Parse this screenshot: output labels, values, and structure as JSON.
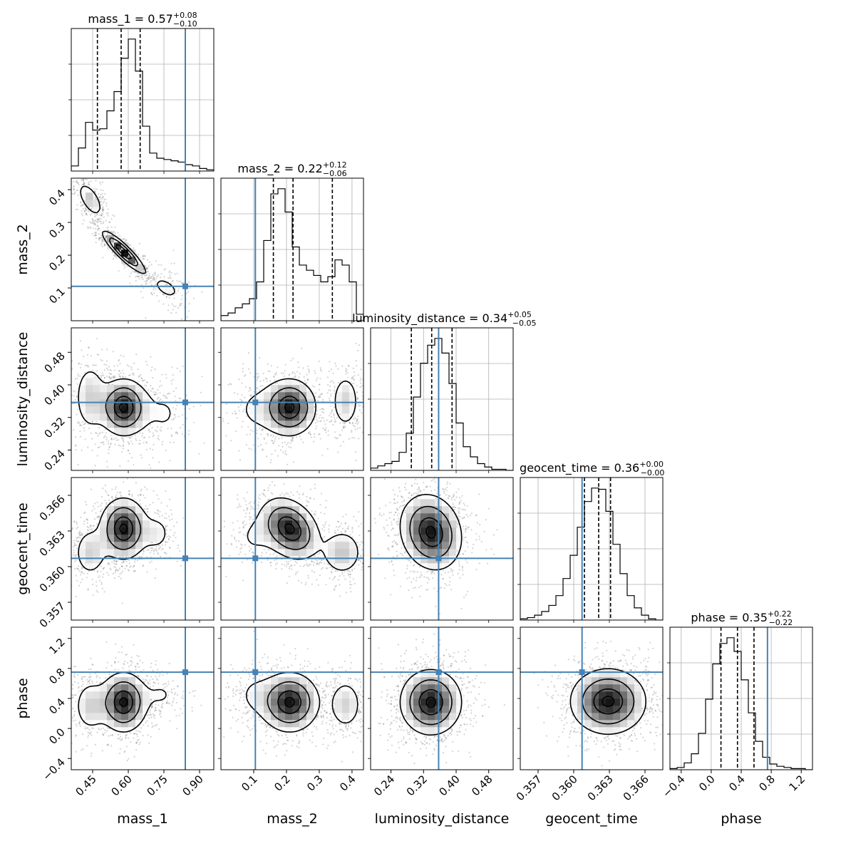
{
  "chart_data": {
    "type": "corner",
    "parameters": [
      "mass_1",
      "mass_2",
      "luminosity_distance",
      "geocent_time",
      "phase"
    ],
    "injection": [
      0.84,
      0.105,
      0.357,
      0.3607,
      0.75
    ],
    "truth_color": "#4682b4",
    "ranges": [
      [
        0.36,
        0.96
      ],
      [
        0.0,
        0.435
      ],
      [
        0.19,
        0.54
      ],
      [
        0.3555,
        0.3675
      ],
      [
        -0.55,
        1.35
      ]
    ],
    "ticks": {
      "mass_1": [
        0.45,
        0.6,
        0.75,
        0.9
      ],
      "mass_2": [
        0.1,
        0.2,
        0.3,
        0.4
      ],
      "luminosity_distance": [
        0.24,
        0.32,
        0.4,
        0.48
      ],
      "geocent_time": [
        0.357,
        0.36,
        0.363,
        0.366
      ],
      "phase": [
        -0.4,
        0.0,
        0.4,
        0.8,
        1.2
      ]
    },
    "tick_labels": {
      "mass_1": [
        "0.45",
        "0.60",
        "0.75",
        "0.90"
      ],
      "mass_2": [
        "0.1",
        "0.2",
        "0.3",
        "0.4"
      ],
      "luminosity_distance": [
        "0.24",
        "0.32",
        "0.40",
        "0.48"
      ],
      "geocent_time": [
        "0.357",
        "0.360",
        "0.363",
        "0.366"
      ],
      "phase": [
        "−0.4",
        "0.0",
        "0.4",
        "0.8",
        "1.2"
      ]
    },
    "titles": [
      {
        "param": "mass_1",
        "text": "mass_1 = 0.57",
        "plus": "+0.08",
        "minus": "−0.10"
      },
      {
        "param": "mass_2",
        "text": "mass_2 = 0.22",
        "plus": "+0.12",
        "minus": "−0.06"
      },
      {
        "param": "luminosity_distance",
        "text": "luminosity_distance = 0.34",
        "plus": "+0.05",
        "minus": "−0.05"
      },
      {
        "param": "geocent_time",
        "text": "geocent_time = 0.36",
        "plus": "+0.00",
        "minus": "−0.00"
      },
      {
        "param": "phase",
        "text": "phase = 0.35",
        "plus": "+0.22",
        "minus": "−0.22"
      }
    ],
    "quantiles": [
      [
        0.47,
        0.57,
        0.65
      ],
      [
        0.16,
        0.22,
        0.34
      ],
      [
        0.29,
        0.34,
        0.39
      ],
      [
        0.3609,
        0.3621,
        0.3631
      ],
      [
        0.13,
        0.35,
        0.57
      ]
    ],
    "histograms": [
      {
        "param": "mass_1",
        "bins": [
          0.36,
          0.96
        ],
        "counts": [
          4,
          18,
          38,
          32,
          33,
          47,
          62,
          88,
          103,
          78,
          35,
          14,
          10,
          9,
          8,
          7,
          5,
          4,
          2,
          1
        ]
      },
      {
        "param": "mass_2",
        "bins": [
          0.0,
          0.435
        ],
        "counts": [
          4,
          6,
          10,
          13,
          17,
          30,
          62,
          98,
          102,
          84,
          57,
          43,
          39,
          35,
          30,
          34,
          47,
          43,
          30,
          5
        ]
      },
      {
        "param": "luminosity_distance",
        "bins": [
          0.19,
          0.54
        ],
        "counts": [
          2,
          4,
          6,
          8,
          16,
          33,
          65,
          95,
          111,
          117,
          104,
          77,
          42,
          21,
          12,
          6,
          3,
          1,
          1,
          0
        ]
      },
      {
        "param": "geocent_time",
        "bins": [
          0.3555,
          0.3675
        ],
        "counts": [
          1,
          2,
          4,
          7,
          12,
          20,
          34,
          53,
          76,
          97,
          108,
          107,
          89,
          62,
          38,
          20,
          10,
          4,
          1,
          0
        ]
      },
      {
        "param": "phase",
        "bins": [
          -0.55,
          1.35
        ],
        "counts": [
          1,
          2,
          6,
          14,
          32,
          62,
          93,
          111,
          116,
          104,
          79,
          50,
          25,
          11,
          5,
          3,
          2,
          1,
          1,
          0
        ]
      }
    ],
    "densities": [
      {
        "x": "mass_1",
        "y": "mass_2",
        "modes": [
          {
            "mx": 0.58,
            "my": 0.21,
            "sx": 0.045,
            "sy": 0.032,
            "rho": -0.9,
            "w": 1.0
          },
          {
            "mx": 0.44,
            "my": 0.37,
            "sx": 0.03,
            "sy": 0.03,
            "rho": -0.6,
            "w": 0.35
          },
          {
            "mx": 0.76,
            "my": 0.1,
            "sx": 0.05,
            "sy": 0.03,
            "rho": -0.5,
            "w": 0.18
          }
        ]
      },
      {
        "x": "mass_1",
        "y": "luminosity_distance",
        "modes": [
          {
            "mx": 0.58,
            "my": 0.345,
            "sx": 0.05,
            "sy": 0.035,
            "rho": 0.0,
            "w": 1.0
          },
          {
            "mx": 0.44,
            "my": 0.37,
            "sx": 0.04,
            "sy": 0.05,
            "rho": 0.0,
            "w": 0.3
          },
          {
            "mx": 0.75,
            "my": 0.33,
            "sx": 0.07,
            "sy": 0.05,
            "rho": 0.0,
            "w": 0.15
          }
        ]
      },
      {
        "x": "mass_2",
        "y": "luminosity_distance",
        "modes": [
          {
            "mx": 0.21,
            "my": 0.345,
            "sx": 0.04,
            "sy": 0.035,
            "rho": 0.0,
            "w": 1.0
          },
          {
            "mx": 0.38,
            "my": 0.36,
            "sx": 0.025,
            "sy": 0.04,
            "rho": 0.0,
            "w": 0.3
          },
          {
            "mx": 0.1,
            "my": 0.34,
            "sx": 0.05,
            "sy": 0.05,
            "rho": 0.0,
            "w": 0.15
          }
        ]
      },
      {
        "x": "mass_1",
        "y": "geocent_time",
        "modes": [
          {
            "mx": 0.58,
            "my": 0.3632,
            "sx": 0.05,
            "sy": 0.0013,
            "rho": 0.0,
            "w": 1.0
          },
          {
            "mx": 0.44,
            "my": 0.3612,
            "sx": 0.04,
            "sy": 0.0012,
            "rho": 0.0,
            "w": 0.3
          },
          {
            "mx": 0.72,
            "my": 0.3628,
            "sx": 0.04,
            "sy": 0.001,
            "rho": 0.0,
            "w": 0.2
          }
        ]
      },
      {
        "x": "mass_2",
        "y": "geocent_time",
        "modes": [
          {
            "mx": 0.21,
            "my": 0.3632,
            "sx": 0.045,
            "sy": 0.0013,
            "rho": -0.3,
            "w": 1.0
          },
          {
            "mx": 0.37,
            "my": 0.3612,
            "sx": 0.035,
            "sy": 0.0011,
            "rho": 0.0,
            "w": 0.35
          },
          {
            "mx": 0.1,
            "my": 0.3625,
            "sx": 0.04,
            "sy": 0.0012,
            "rho": 0.0,
            "w": 0.15
          }
        ]
      },
      {
        "x": "luminosity_distance",
        "y": "geocent_time",
        "modes": [
          {
            "mx": 0.338,
            "my": 0.3629,
            "sx": 0.038,
            "sy": 0.0016,
            "rho": -0.15,
            "w": 1.0
          }
        ]
      },
      {
        "x": "mass_1",
        "y": "phase",
        "modes": [
          {
            "mx": 0.58,
            "my": 0.35,
            "sx": 0.05,
            "sy": 0.2,
            "rho": 0.0,
            "w": 1.0
          },
          {
            "mx": 0.44,
            "my": 0.3,
            "sx": 0.04,
            "sy": 0.2,
            "rho": 0.0,
            "w": 0.3
          },
          {
            "mx": 0.74,
            "my": 0.45,
            "sx": 0.05,
            "sy": 0.15,
            "rho": 0.0,
            "w": 0.15
          }
        ]
      },
      {
        "x": "mass_2",
        "y": "phase",
        "modes": [
          {
            "mx": 0.21,
            "my": 0.35,
            "sx": 0.045,
            "sy": 0.2,
            "rho": 0.0,
            "w": 1.0
          },
          {
            "mx": 0.38,
            "my": 0.32,
            "sx": 0.03,
            "sy": 0.2,
            "rho": 0.0,
            "w": 0.3
          },
          {
            "mx": 0.1,
            "my": 0.45,
            "sx": 0.04,
            "sy": 0.2,
            "rho": 0.0,
            "w": 0.15
          }
        ]
      },
      {
        "x": "luminosity_distance",
        "y": "phase",
        "modes": [
          {
            "mx": 0.338,
            "my": 0.35,
            "sx": 0.038,
            "sy": 0.22,
            "rho": 0.0,
            "w": 1.0
          }
        ]
      },
      {
        "x": "geocent_time",
        "y": "phase",
        "modes": [
          {
            "mx": 0.3629,
            "my": 0.36,
            "sx": 0.0016,
            "sy": 0.22,
            "rho": 0.0,
            "w": 1.0
          }
        ]
      }
    ],
    "grid": true
  }
}
